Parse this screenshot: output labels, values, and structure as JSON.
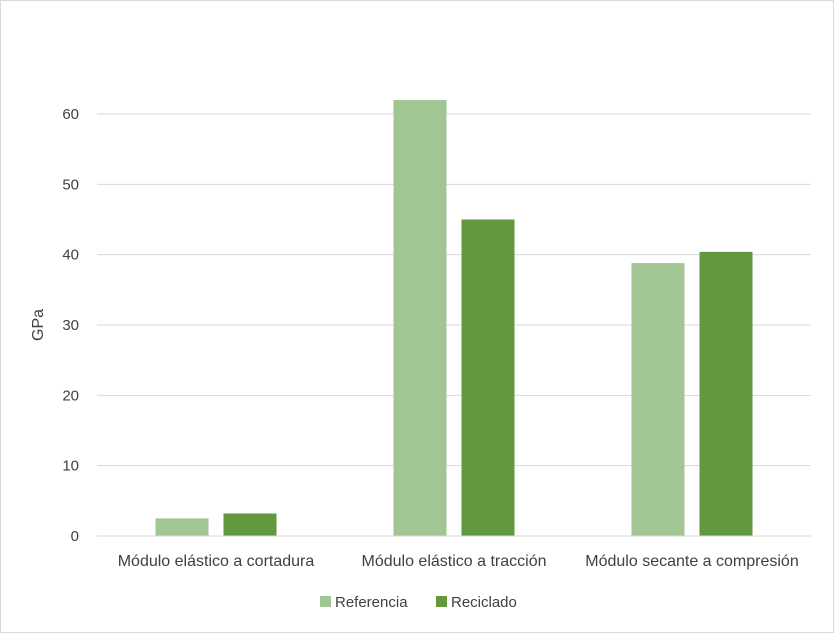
{
  "chart_data": {
    "type": "bar",
    "title": "",
    "xlabel": "",
    "ylabel": "GPa",
    "ylim": [
      0,
      60
    ],
    "yticks": [
      0,
      10,
      20,
      30,
      40,
      50,
      60
    ],
    "grid": true,
    "legend_position": "bottom",
    "categories": [
      "Módulo elástico a cortadura",
      "Módulo elástico a tracción",
      "Módulo secante a compresión"
    ],
    "series": [
      {
        "name": "Referencia",
        "color": "#a2c594",
        "values": [
          2.5,
          62,
          38.8
        ]
      },
      {
        "name": "Reciclado",
        "color": "#62993e",
        "values": [
          3.2,
          45,
          40.4
        ]
      }
    ]
  }
}
